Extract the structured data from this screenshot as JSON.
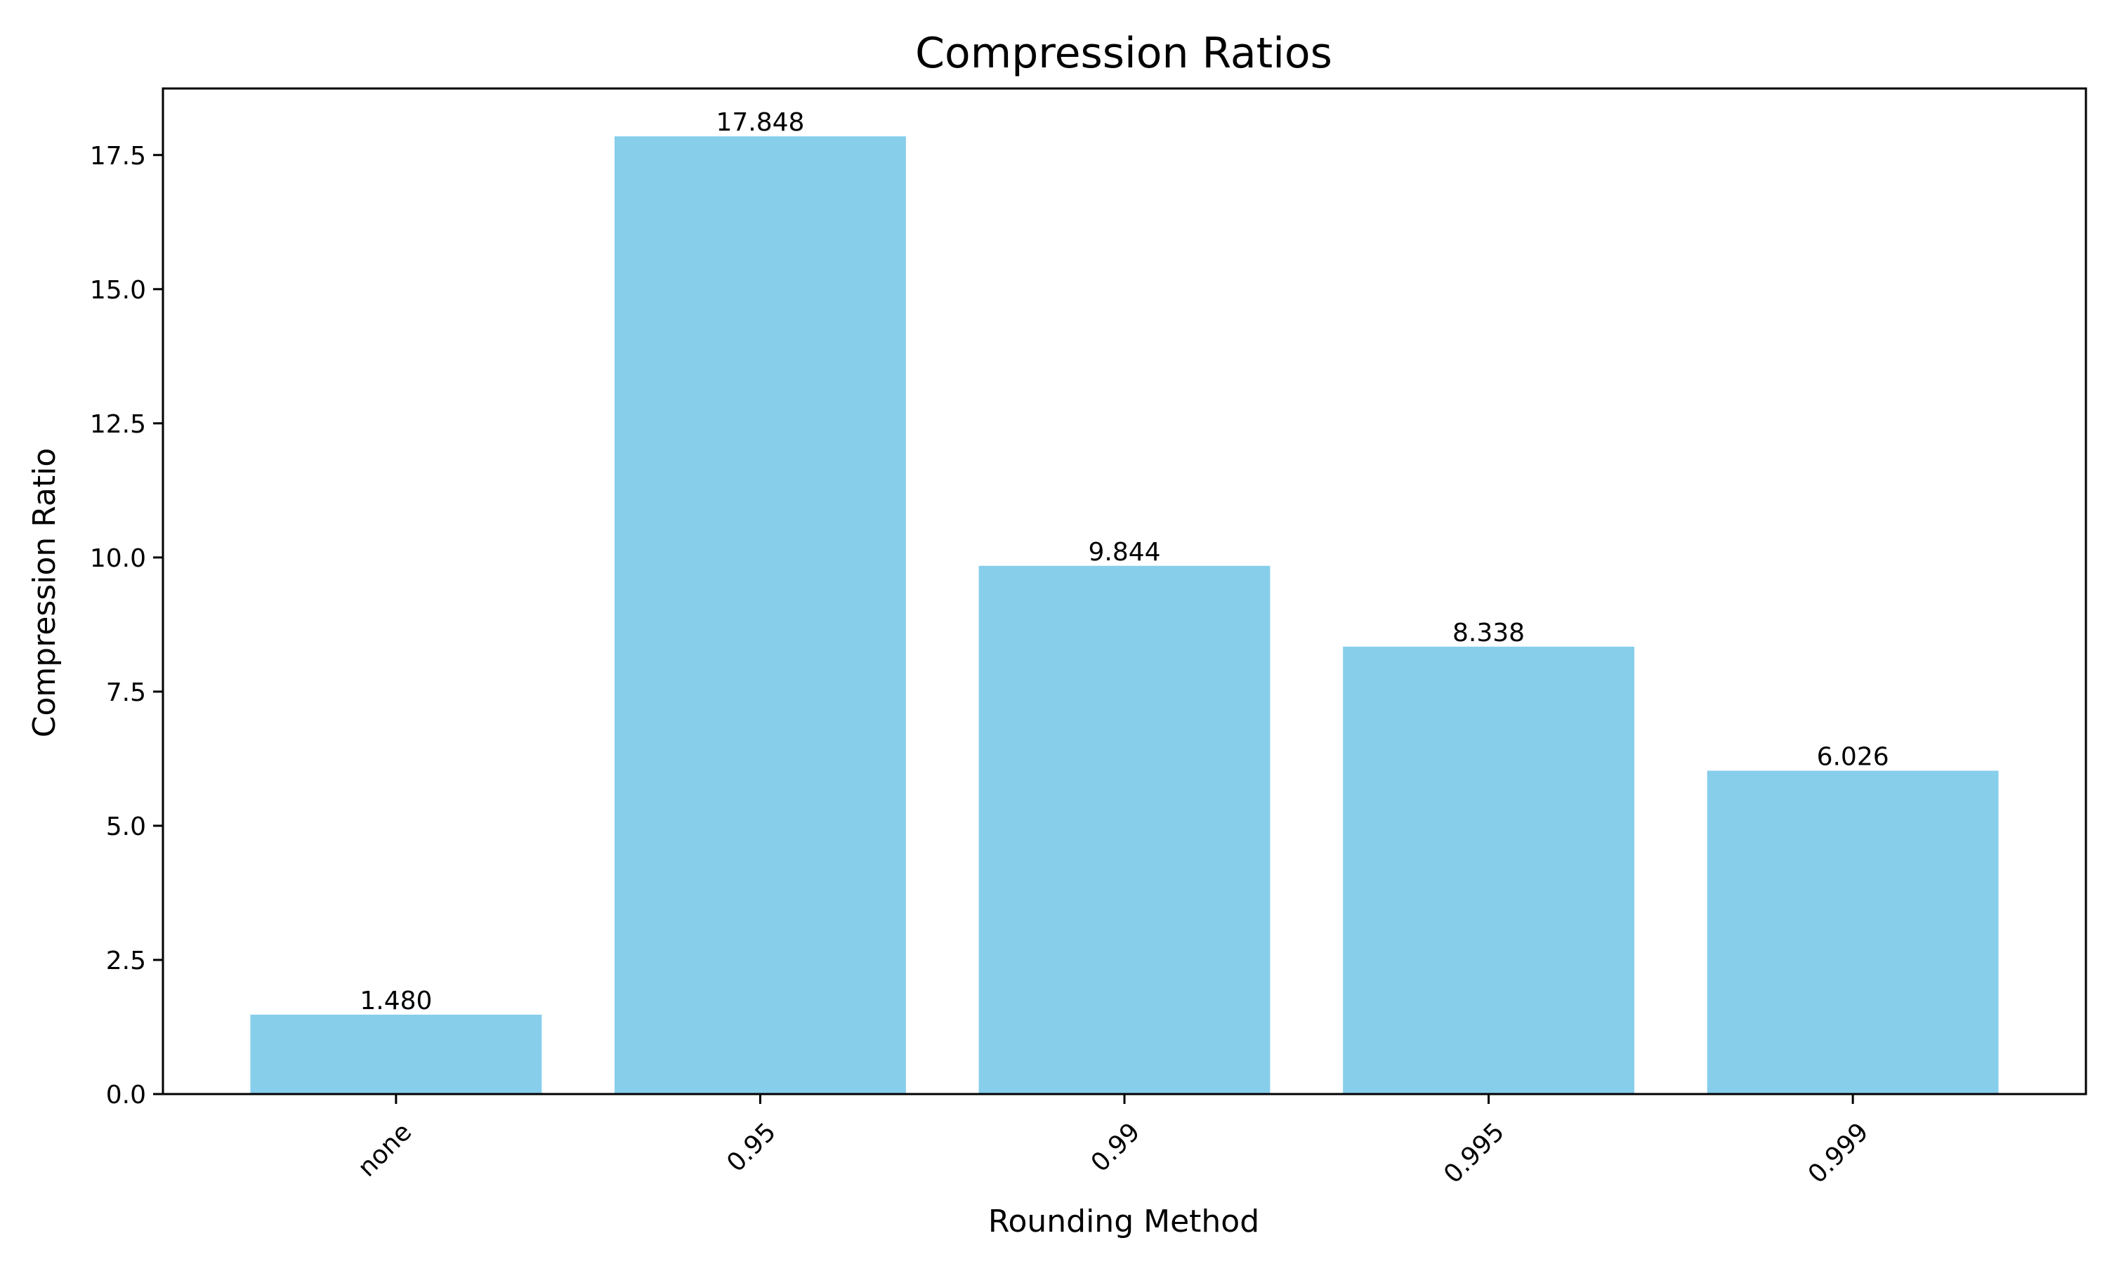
{
  "chart_data": {
    "type": "bar",
    "title": "Compression Ratios",
    "xlabel": "Rounding Method",
    "ylabel": "Compression Ratio",
    "categories": [
      "none",
      "0.95",
      "0.99",
      "0.995",
      "0.999"
    ],
    "values": [
      1.48,
      17.848,
      9.844,
      8.338,
      6.026
    ],
    "value_labels": [
      "1.480",
      "17.848",
      "9.844",
      "8.338",
      "6.026"
    ],
    "ylim": [
      0,
      18.74
    ],
    "yticks": [
      0.0,
      2.5,
      5.0,
      7.5,
      10.0,
      12.5,
      15.0,
      17.5
    ],
    "ytick_labels": [
      "0.0",
      "2.5",
      "5.0",
      "7.5",
      "10.0",
      "12.5",
      "15.0",
      "17.5"
    ],
    "bar_color": "#87ceeb",
    "grid": false,
    "legend": false
  }
}
